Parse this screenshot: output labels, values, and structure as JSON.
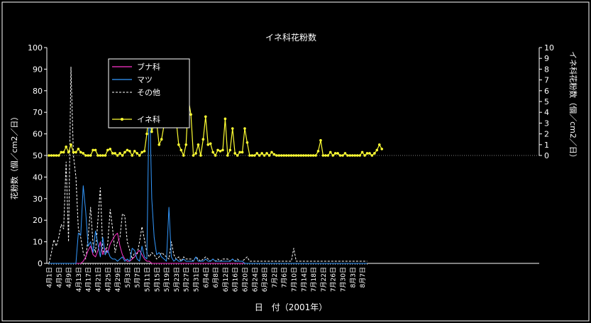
{
  "chart_data": {
    "type": "line",
    "title": "イネ科花粉数",
    "xlabel": "日　付（2001年）",
    "ylabel_left": "花粉数（個／cm2／日）",
    "ylabel_right": "イネ科花粉数（個／cm2／日）",
    "ylim_left": [
      0,
      100
    ],
    "yticks_left": [
      "0",
      "10",
      "20",
      "30",
      "40",
      "50",
      "60",
      "70",
      "80",
      "90",
      "100"
    ],
    "ylim_right": [
      0,
      10
    ],
    "yticks_right": [
      "0",
      "1",
      "2",
      "3",
      "4",
      "5",
      "6",
      "7",
      "8",
      "9",
      "10"
    ],
    "grid": false,
    "legend_position": "top-left",
    "x_start_label": "4月1日",
    "x_tick_labels": [
      "4月1日",
      "4月5日",
      "4月9日",
      "4月13日",
      "4月17日",
      "4月21日",
      "4月25日",
      "4月29日",
      "5月3日",
      "5月7日",
      "5月11日",
      "5月15日",
      "5月19日",
      "5月23日",
      "5月27日",
      "5月31日",
      "6月4日",
      "6月8日",
      "6月12日",
      "6月16日",
      "6月20日",
      "6月24日",
      "6月28日",
      "7月2日",
      "7月6日",
      "7月10日",
      "7月14日",
      "7月18日",
      "7月22日",
      "7月26日",
      "7月30日",
      "8月3日",
      "8月7日"
    ],
    "series": [
      {
        "name": "ブナ科",
        "axis": "left",
        "color": "#ff33cc",
        "style": "solid",
        "values": [
          0,
          0,
          0,
          0,
          0,
          0,
          0,
          0,
          0,
          0,
          0,
          0,
          0,
          0,
          1,
          3,
          6,
          8,
          4,
          3,
          6,
          10,
          4,
          7,
          5,
          9,
          11,
          13,
          14,
          8,
          4,
          2,
          1,
          1,
          2,
          3,
          5,
          6,
          4,
          2,
          1,
          1,
          0,
          0,
          0,
          0,
          0,
          0,
          0,
          0,
          0,
          0,
          0,
          0,
          0,
          0,
          0,
          0,
          0,
          0,
          0,
          0,
          0,
          0,
          0,
          0,
          0,
          0,
          0,
          0,
          0,
          0,
          0,
          0,
          0,
          0,
          0,
          0,
          0,
          0,
          0,
          0,
          0,
          0,
          0,
          0,
          0,
          0,
          0,
          0,
          0,
          0,
          0,
          0,
          0,
          0,
          0,
          0,
          0,
          0,
          0,
          0,
          0,
          0,
          0,
          0,
          0,
          0,
          0,
          0,
          0,
          0,
          0,
          0,
          0,
          0,
          0,
          0,
          0,
          0,
          0,
          0,
          0,
          0,
          0,
          0,
          0,
          0,
          0,
          0,
          0
        ]
      },
      {
        "name": "マツ",
        "axis": "left",
        "color": "#3399ff",
        "style": "solid",
        "values": [
          0,
          0,
          0,
          0,
          0,
          0,
          0,
          0,
          0,
          0,
          0,
          0,
          14,
          13,
          36,
          24,
          8,
          10,
          5,
          15,
          9,
          3,
          12,
          4,
          6,
          3,
          2,
          2,
          1,
          2,
          3,
          1,
          2,
          1,
          7,
          6,
          2,
          1,
          8,
          3,
          2,
          83,
          30,
          12,
          4,
          5,
          3,
          2,
          1,
          26,
          3,
          1,
          2,
          1,
          1,
          2,
          1,
          1,
          1,
          1,
          3,
          1,
          1,
          1,
          2,
          1,
          1,
          2,
          1,
          1,
          1,
          1,
          1,
          1,
          1,
          2,
          1,
          1,
          1,
          1,
          0,
          0,
          0,
          0,
          0,
          0,
          0,
          0,
          0,
          0,
          0,
          0,
          0,
          0,
          0,
          0,
          0,
          0,
          0,
          0,
          0,
          0,
          0,
          0,
          0,
          0,
          0,
          0,
          0,
          0,
          0,
          0,
          0,
          0,
          0,
          0,
          0,
          0,
          0,
          0,
          0,
          0,
          0,
          0,
          0,
          0,
          0,
          0,
          0,
          0,
          0
        ]
      },
      {
        "name": "その他",
        "axis": "left",
        "color": "#ffffff",
        "style": "dashed",
        "values": [
          0,
          5,
          11,
          8,
          12,
          18,
          16,
          47,
          10,
          91,
          50,
          40,
          16,
          12,
          5,
          2,
          12,
          26,
          9,
          5,
          20,
          35,
          6,
          4,
          9,
          25,
          16,
          5,
          10,
          12,
          23,
          22,
          10,
          6,
          2,
          5,
          4,
          10,
          17,
          11,
          5,
          3,
          5,
          4,
          2,
          3,
          5,
          4,
          3,
          2,
          10,
          4,
          2,
          3,
          1,
          3,
          2,
          2,
          2,
          1,
          3,
          2,
          1,
          2,
          3,
          2,
          1,
          2,
          1,
          2,
          1,
          2,
          2,
          2,
          1,
          2,
          1,
          2,
          1,
          1,
          2,
          3,
          1,
          1,
          1,
          1,
          1,
          1,
          1,
          1,
          1,
          1,
          1,
          1,
          1,
          1,
          1,
          1,
          1,
          1,
          7,
          1,
          1,
          1,
          1,
          1,
          1,
          1,
          1,
          1,
          1,
          1,
          1,
          1,
          1,
          1,
          1,
          1,
          1,
          1,
          1,
          1,
          1,
          1,
          1,
          1,
          1,
          1,
          1,
          1,
          1
        ]
      },
      {
        "name": "イネ科",
        "axis": "right",
        "color": "#ffff33",
        "style": "solid-markers",
        "values": [
          0,
          0,
          0,
          0,
          0,
          0.3,
          0.3,
          0.8,
          0.3,
          1,
          0.3,
          0.3,
          0.6,
          0.3,
          0.2,
          0,
          0,
          0,
          0.5,
          0.5,
          0,
          0,
          0,
          0,
          0.5,
          0.6,
          0.2,
          0.2,
          0,
          0.2,
          0,
          0.3,
          0.5,
          0.4,
          0,
          0.4,
          0.2,
          0,
          0.3,
          0.4,
          2,
          4.2,
          2.2,
          3,
          3,
          1,
          1.5,
          2.8,
          6.5,
          7,
          3.2,
          4.6,
          3.2,
          1,
          0.5,
          0,
          1,
          5.2,
          3.8,
          0,
          0.2,
          1,
          0,
          1.5,
          3.6,
          1,
          1.1,
          0.3,
          0,
          0.5,
          0.4,
          0.5,
          3.4,
          0,
          0.5,
          2.5,
          0.2,
          0,
          0.3,
          0.3,
          2.5,
          1.2,
          0,
          0,
          0,
          0.2,
          0,
          0.2,
          0,
          0.2,
          0,
          0.3,
          0.1,
          0,
          0,
          0,
          0,
          0,
          0,
          0,
          0,
          0,
          0,
          0,
          0,
          0,
          0,
          0,
          0,
          0,
          0.4,
          1.4,
          0,
          0,
          0,
          0.3,
          0,
          0.2,
          0.2,
          0,
          0,
          0.2,
          0,
          0,
          0,
          0,
          0,
          0,
          0.3,
          0,
          0.2,
          0.2,
          0,
          0.2,
          0.5,
          1,
          0.6
        ]
      }
    ]
  }
}
